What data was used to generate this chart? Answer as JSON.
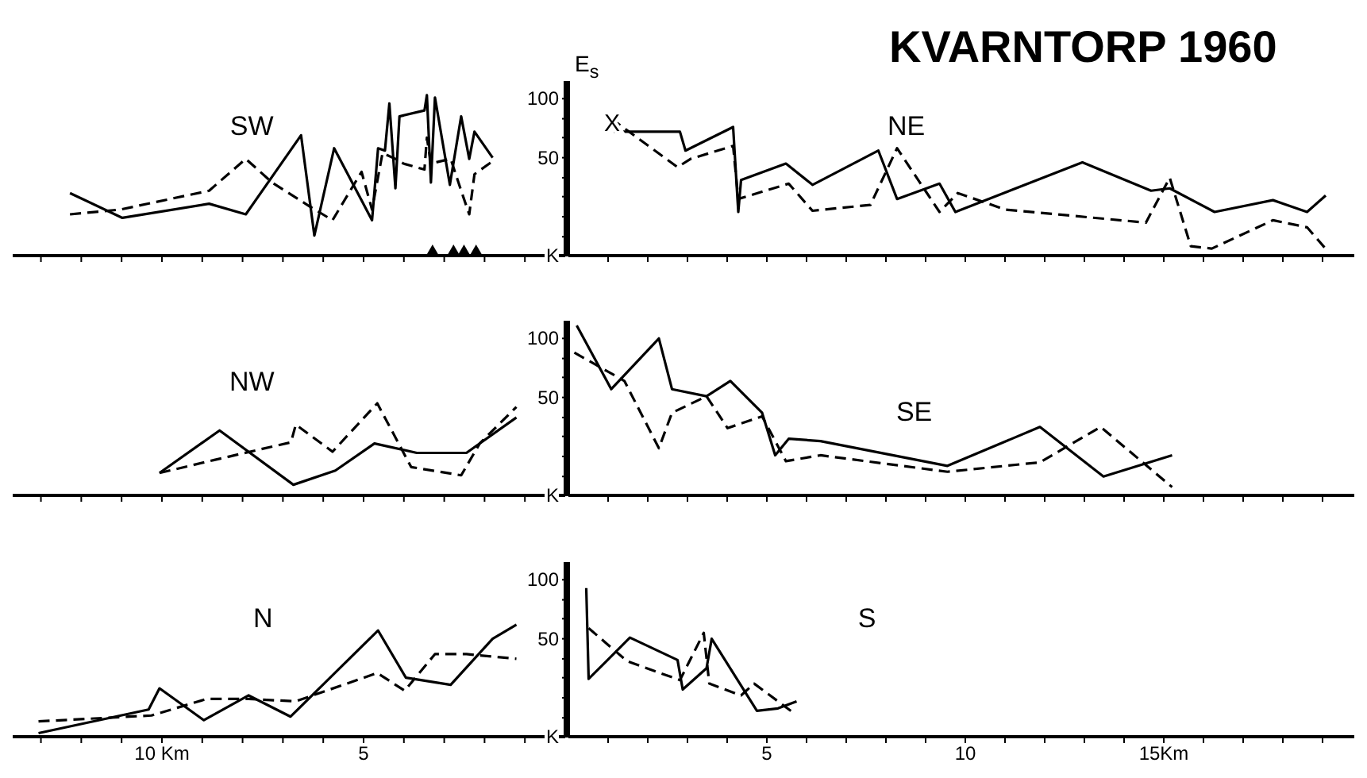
{
  "chart_data": [
    {
      "type": "line",
      "marker": "none",
      "annotations": [
        "SW"
      ],
      "tick_labels": false,
      "xlim": [
        13.7,
        0
      ],
      "ylim": [
        -33,
        115
      ],
      "xticks": [
        {
          "value": 1,
          "label": null
        },
        {
          "value": 2,
          "label": null
        },
        {
          "value": 3,
          "label": null
        },
        {
          "value": 4,
          "label": null
        },
        {
          "value": 5,
          "label": null
        },
        {
          "value": 6,
          "label": null
        },
        {
          "value": 7,
          "label": null
        },
        {
          "value": 8,
          "label": null
        },
        {
          "value": 9,
          "label": null
        },
        {
          "value": 10,
          "label": null
        },
        {
          "value": 11,
          "label": null
        },
        {
          "value": 12,
          "label": null
        },
        {
          "value": 13,
          "label": null
        }
      ],
      "yticks": [
        {
          "value": -33,
          "label": null
        },
        {
          "value": -17,
          "label": null
        },
        {
          "value": 0,
          "label": null
        },
        {
          "value": 17,
          "label": null
        },
        {
          "value": 33,
          "label": null
        },
        {
          "value": 50,
          "label": null
        },
        {
          "value": 67,
          "label": null
        },
        {
          "value": 83,
          "label": null
        },
        {
          "value": 100,
          "label": null
        }
      ],
      "series": [
        {
          "color": "#000000",
          "line_style": "solid",
          "x": [
            12.28,
            10.98,
            8.83,
            7.92,
            6.55,
            6.22,
            5.73,
            4.79,
            4.64,
            4.47,
            4.36,
            4.21,
            4.11,
            3.49,
            3.43,
            3.33,
            3.23,
            2.86,
            2.58,
            2.38,
            2.25,
            1.8
          ],
          "values": [
            20,
            -1,
            11,
            2,
            69,
            -16,
            58,
            -3,
            58,
            56,
            96,
            24,
            85,
            90,
            103,
            29,
            101,
            27,
            85,
            49,
            72,
            50
          ]
        },
        {
          "color": "#000000",
          "line_style": "dashed",
          "x": [
            12.28,
            11.04,
            8.83,
            7.92,
            7.27,
            6.35,
            5.77,
            5.05,
            4.79,
            4.53,
            4.21,
            4.01,
            3.49,
            3.43,
            3.33,
            2.84,
            2.58,
            2.38,
            2.25,
            1.8
          ],
          "values": [
            2,
            6,
            22,
            49,
            29,
            9,
            -3,
            38,
            6,
            54,
            49,
            45,
            40,
            67,
            45,
            49,
            22,
            2,
            36,
            47
          ]
        },
        {
          "type": "scatter",
          "marker": "triangle",
          "color": "#000000",
          "x": [
            3.29,
            2.77,
            2.51,
            2.21
          ],
          "values": [
            -33,
            -33,
            -33,
            -33
          ]
        }
      ]
    },
    {
      "type": "line",
      "marker": "none",
      "title": "KVARNTORP 1960",
      "ylabel": "E$_{s}$",
      "annotations": [
        "NE",
        {
          "text": "X",
          "x": 1.1,
          "y": 80
        }
      ],
      "tick_labels": "y",
      "xlim": [
        0,
        19.8
      ],
      "ylim": [
        -33,
        115
      ],
      "xticks": [
        {
          "value": 1,
          "label": null
        },
        {
          "value": 2,
          "label": null
        },
        {
          "value": 3,
          "label": null
        },
        {
          "value": 4,
          "label": null
        },
        {
          "value": 5,
          "label": null
        },
        {
          "value": 6,
          "label": null
        },
        {
          "value": 7,
          "label": null
        },
        {
          "value": 8,
          "label": null
        },
        {
          "value": 9,
          "label": null
        },
        {
          "value": 10,
          "label": null
        },
        {
          "value": 11,
          "label": null
        },
        {
          "value": 12,
          "label": null
        },
        {
          "value": 13,
          "label": null
        },
        {
          "value": 14,
          "label": null
        },
        {
          "value": 15,
          "label": null
        },
        {
          "value": 16,
          "label": null
        },
        {
          "value": 17,
          "label": null
        },
        {
          "value": 18,
          "label": null
        },
        {
          "value": 19,
          "label": null
        }
      ],
      "yticks": [
        {
          "value": -33,
          "label": "K"
        },
        {
          "value": -17,
          "label": null
        },
        {
          "value": 0,
          "label": null
        },
        {
          "value": 17,
          "label": null
        },
        {
          "value": 33,
          "label": null
        },
        {
          "value": 50,
          "label": "50"
        },
        {
          "value": 67,
          "label": null
        },
        {
          "value": 83,
          "label": null
        },
        {
          "value": 100,
          "label": "100"
        }
      ],
      "series": [
        {
          "color": "#000000",
          "line_style": "solid",
          "x": [
            1.15,
            2.81,
            2.95,
            4.15,
            4.28,
            4.35,
            5.48,
            6.15,
            7.81,
            8.28,
            9.35,
            9.75,
            12.95,
            14.68,
            15.15,
            16.28,
            17.75,
            18.61,
            19.08
          ],
          "values": [
            72,
            72,
            56,
            76,
            4,
            31,
            45,
            27,
            56,
            15,
            28,
            4,
            46,
            22,
            24,
            4,
            14,
            4,
            18
          ]
        },
        {
          "color": "#000000",
          "line_style": "dashed",
          "x": [
            1.08,
            2.75,
            3.08,
            4.15,
            4.28,
            5.55,
            6.15,
            7.61,
            8.28,
            9.35,
            9.81,
            11.01,
            14.55,
            15.15,
            15.68,
            16.21,
            17.75,
            18.61,
            19.15
          ],
          "values": [
            83,
            42,
            49,
            60,
            15,
            28,
            5,
            10,
            58,
            4,
            20,
            6,
            -5,
            33,
            -25,
            -27,
            -3,
            -9,
            -30
          ]
        }
      ]
    },
    {
      "type": "line",
      "marker": "none",
      "annotations": [
        "NW"
      ],
      "tick_labels": false,
      "xlim": [
        13.7,
        0
      ],
      "ylim": [
        -33,
        115
      ],
      "xticks": [
        {
          "value": 1,
          "label": null
        },
        {
          "value": 2,
          "label": null
        },
        {
          "value": 3,
          "label": null
        },
        {
          "value": 4,
          "label": null
        },
        {
          "value": 5,
          "label": null
        },
        {
          "value": 6,
          "label": null
        },
        {
          "value": 7,
          "label": null
        },
        {
          "value": 8,
          "label": null
        },
        {
          "value": 9,
          "label": null
        },
        {
          "value": 10,
          "label": null
        },
        {
          "value": 11,
          "label": null
        },
        {
          "value": 12,
          "label": null
        },
        {
          "value": 13,
          "label": null
        }
      ],
      "yticks": [
        {
          "value": -33,
          "label": null
        },
        {
          "value": -17,
          "label": null
        },
        {
          "value": 0,
          "label": null
        },
        {
          "value": 17,
          "label": null
        },
        {
          "value": 33,
          "label": null
        },
        {
          "value": 50,
          "label": null
        },
        {
          "value": 67,
          "label": null
        },
        {
          "value": 83,
          "label": null
        },
        {
          "value": 100,
          "label": null
        }
      ],
      "series": [
        {
          "color": "#000000",
          "line_style": "solid",
          "x": [
            10.06,
            8.57,
            6.74,
            5.7,
            4.73,
            3.68,
            2.45,
            1.21
          ],
          "values": [
            -14,
            22,
            -24,
            -12,
            11,
            3,
            3,
            33
          ]
        },
        {
          "color": "#000000",
          "line_style": "dashed",
          "x": [
            10.06,
            8.7,
            6.8,
            6.68,
            5.77,
            4.66,
            3.82,
            2.58,
            2.12,
            1.21
          ],
          "values": [
            -14,
            -3,
            12,
            27,
            4,
            45,
            -9,
            -16,
            11,
            42
          ]
        }
      ]
    },
    {
      "type": "line",
      "marker": "none",
      "annotations": [
        "SE"
      ],
      "tick_labels": "y",
      "xlim": [
        0,
        19.8
      ],
      "ylim": [
        -33,
        115
      ],
      "xticks": [
        {
          "value": 1,
          "label": null
        },
        {
          "value": 2,
          "label": null
        },
        {
          "value": 3,
          "label": null
        },
        {
          "value": 4,
          "label": null
        },
        {
          "value": 5,
          "label": null
        },
        {
          "value": 6,
          "label": null
        },
        {
          "value": 7,
          "label": null
        },
        {
          "value": 8,
          "label": null
        },
        {
          "value": 9,
          "label": null
        },
        {
          "value": 10,
          "label": null
        },
        {
          "value": 11,
          "label": null
        },
        {
          "value": 12,
          "label": null
        },
        {
          "value": 13,
          "label": null
        },
        {
          "value": 14,
          "label": null
        },
        {
          "value": 15,
          "label": null
        },
        {
          "value": 16,
          "label": null
        },
        {
          "value": 17,
          "label": null
        },
        {
          "value": 18,
          "label": null
        },
        {
          "value": 19,
          "label": null
        }
      ],
      "yticks": [
        {
          "value": -33,
          "label": "K"
        },
        {
          "value": -17,
          "label": null
        },
        {
          "value": 0,
          "label": null
        },
        {
          "value": 17,
          "label": null
        },
        {
          "value": 33,
          "label": null
        },
        {
          "value": 50,
          "label": "50"
        },
        {
          "value": 67,
          "label": null
        },
        {
          "value": 83,
          "label": null
        },
        {
          "value": 100,
          "label": "100"
        }
      ],
      "series": [
        {
          "color": "#000000",
          "line_style": "solid",
          "x": [
            0.21,
            1.08,
            2.28,
            2.61,
            3.48,
            4.08,
            4.88,
            5.21,
            5.55,
            6.35,
            9.55,
            11.88,
            13.48,
            15.21
          ],
          "values": [
            111,
            57,
            100,
            57,
            51,
            64,
            37,
            1,
            15,
            13,
            -8,
            25,
            -17,
            1
          ]
        },
        {
          "color": "#000000",
          "line_style": "dashed",
          "x": [
            0.15,
            1.41,
            2.28,
            2.61,
            3.48,
            4.01,
            4.88,
            5.48,
            6.35,
            9.55,
            11.88,
            13.41,
            15.21
          ],
          "values": [
            88,
            64,
            7,
            37,
            51,
            24,
            34,
            -4,
            1,
            -13,
            -5,
            25,
            -26
          ]
        }
      ]
    },
    {
      "type": "line",
      "marker": "none",
      "annotations": [
        "N"
      ],
      "tick_labels": "x",
      "xlim": [
        13.7,
        0
      ],
      "ylim": [
        -33,
        115
      ],
      "xticks": [
        {
          "value": 1,
          "label": null
        },
        {
          "value": 2,
          "label": null
        },
        {
          "value": 3,
          "label": null
        },
        {
          "value": 4,
          "label": null
        },
        {
          "value": 5,
          "label": "5"
        },
        {
          "value": 6,
          "label": null
        },
        {
          "value": 7,
          "label": null
        },
        {
          "value": 8,
          "label": null
        },
        {
          "value": 9,
          "label": null
        },
        {
          "value": 10,
          "label": "10 Km"
        },
        {
          "value": 11,
          "label": null
        },
        {
          "value": 12,
          "label": null
        },
        {
          "value": 13,
          "label": null
        }
      ],
      "yticks": [
        {
          "value": -33,
          "label": null
        },
        {
          "value": -17,
          "label": null
        },
        {
          "value": 0,
          "label": null
        },
        {
          "value": 17,
          "label": null
        },
        {
          "value": 33,
          "label": null
        },
        {
          "value": 50,
          "label": null
        },
        {
          "value": 67,
          "label": null
        },
        {
          "value": 83,
          "label": null
        },
        {
          "value": 100,
          "label": null
        }
      ],
      "series": [
        {
          "color": "#000000",
          "line_style": "solid",
          "x": [
            13.06,
            10.33,
            10.06,
            8.96,
            7.85,
            6.81,
            4.64,
            3.95,
            2.84,
            1.8,
            1.21
          ],
          "values": [
            -30,
            -10,
            8,
            -19,
            2,
            -16,
            57,
            17,
            11,
            50,
            62
          ]
        },
        {
          "color": "#000000",
          "line_style": "dashed",
          "x": [
            13.06,
            10.26,
            8.89,
            7.85,
            6.68,
            4.66,
            3.98,
            3.23,
            2.45,
            1.21
          ],
          "values": [
            -20,
            -15,
            -1,
            -1,
            -3,
            21,
            6,
            37,
            37,
            33
          ]
        }
      ]
    },
    {
      "type": "line",
      "marker": "none",
      "annotations": [
        "S"
      ],
      "xlim": [
        0,
        19.8
      ],
      "ylim": [
        -33,
        115
      ],
      "xticks": [
        {
          "value": 1,
          "label": null
        },
        {
          "value": 2,
          "label": null
        },
        {
          "value": 3,
          "label": null
        },
        {
          "value": 4,
          "label": null
        },
        {
          "value": 5,
          "label": "5"
        },
        {
          "value": 6,
          "label": null
        },
        {
          "value": 7,
          "label": null
        },
        {
          "value": 8,
          "label": null
        },
        {
          "value": 9,
          "label": null
        },
        {
          "value": 10,
          "label": "10"
        },
        {
          "value": 11,
          "label": null
        },
        {
          "value": 12,
          "label": null
        },
        {
          "value": 13,
          "label": null
        },
        {
          "value": 14,
          "label": null
        },
        {
          "value": 15,
          "label": "15Km"
        },
        {
          "value": 16,
          "label": null
        },
        {
          "value": 17,
          "label": null
        },
        {
          "value": 18,
          "label": null
        },
        {
          "value": 19,
          "label": null
        }
      ],
      "yticks": [
        {
          "value": -33,
          "label": "K"
        },
        {
          "value": -17,
          "label": null
        },
        {
          "value": 0,
          "label": null
        },
        {
          "value": 17,
          "label": null
        },
        {
          "value": 33,
          "label": null
        },
        {
          "value": 50,
          "label": "50"
        },
        {
          "value": 67,
          "label": null
        },
        {
          "value": 83,
          "label": null
        },
        {
          "value": 100,
          "label": "100"
        }
      ],
      "series": [
        {
          "color": "#000000",
          "line_style": "solid",
          "x": [
            0.45,
            0.51,
            1.55,
            2.75,
            2.88,
            3.48,
            3.61,
            4.75,
            5.28,
            5.75
          ],
          "values": [
            93,
            16,
            51,
            32,
            7,
            25,
            50,
            -11,
            -9,
            -3
          ]
        },
        {
          "color": "#000000",
          "line_style": "dashed",
          "x": [
            0.51,
            1.48,
            2.81,
            3.41,
            3.55,
            4.35,
            4.68,
            5.68
          ],
          "values": [
            59,
            31,
            15,
            55,
            12,
            2,
            12,
            -13
          ]
        }
      ]
    }
  ]
}
